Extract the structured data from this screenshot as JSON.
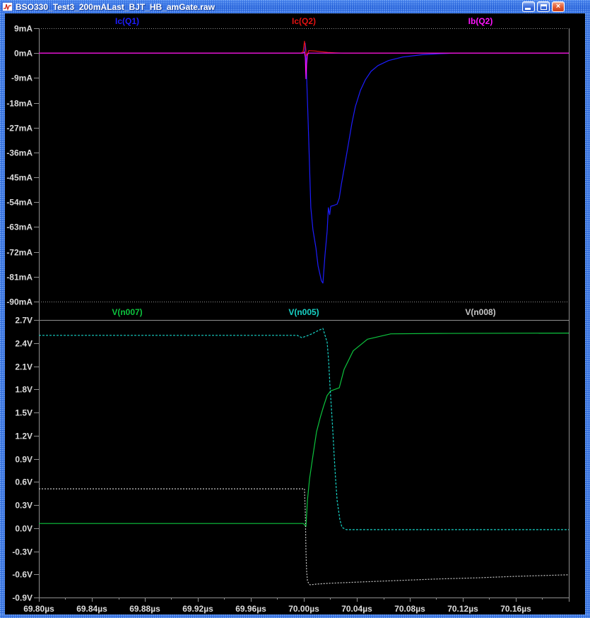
{
  "title_bar": {
    "title": "BSO330_Test3_200mALast_BJT_HB_amGate.raw",
    "close_glyph": "×",
    "icons": [
      "app-waveform-icon",
      "minimize-icon",
      "maximize-icon",
      "close-icon"
    ]
  },
  "colors": {
    "plot_background": "#000000",
    "axis_line": "#909090",
    "axis_text": "#dcdcdc",
    "titlebar_blue": "#2b66d9",
    "trace_blue": "#1d1dff",
    "trace_red": "#e41212",
    "trace_magenta": "#ff14ff",
    "trace_green": "#0dc43e",
    "trace_cyan": "#17d2c6",
    "trace_gray": "#c8c8c8"
  },
  "x_axis": {
    "unit": "µs",
    "xlim": [
      69.8,
      70.2
    ],
    "major_ticks": [
      {
        "t": 69.8,
        "label": "69.80µs"
      },
      {
        "t": 69.84,
        "label": "69.84µs"
      },
      {
        "t": 69.88,
        "label": "69.88µs"
      },
      {
        "t": 69.92,
        "label": "69.92µs"
      },
      {
        "t": 69.96,
        "label": "69.96µs"
      },
      {
        "t": 70.0,
        "label": "70.00µs"
      },
      {
        "t": 70.04,
        "label": "70.04µs"
      },
      {
        "t": 70.08,
        "label": "70.08µs"
      },
      {
        "t": 70.12,
        "label": "70.12µs"
      },
      {
        "t": 70.16,
        "label": "70.16µs"
      },
      {
        "t": 70.2,
        "label": ""
      }
    ],
    "minor_step": 0.02
  },
  "chart_data": [
    {
      "type": "line",
      "pane": "currents",
      "ylabel": "mA",
      "ylim": [
        -90,
        9
      ],
      "grid": false,
      "legend_position": "top-centered",
      "yticks": [
        {
          "v": 9,
          "label": "9mA"
        },
        {
          "v": 0,
          "label": "0mA"
        },
        {
          "v": -9,
          "label": "-9mA"
        },
        {
          "v": -18,
          "label": "-18mA"
        },
        {
          "v": -27,
          "label": "-27mA"
        },
        {
          "v": -36,
          "label": "-36mA"
        },
        {
          "v": -45,
          "label": "-45mA"
        },
        {
          "v": -54,
          "label": "-54mA"
        },
        {
          "v": -63,
          "label": "-63mA"
        },
        {
          "v": -72,
          "label": "-72mA"
        },
        {
          "v": -81,
          "label": "-81mA"
        },
        {
          "v": -90,
          "label": "-90mA"
        }
      ],
      "series": [
        {
          "name": "Ic(Q1)",
          "color": "#1d1dff",
          "dash": "",
          "points": [
            [
              69.8,
              0
            ],
            [
              69.999,
              0
            ],
            [
              70.0005,
              0.2
            ],
            [
              70.001,
              3.6
            ],
            [
              70.0016,
              1.0
            ],
            [
              70.0021,
              -8
            ],
            [
              70.0032,
              -24
            ],
            [
              70.0043,
              -41
            ],
            [
              70.0053,
              -56
            ],
            [
              70.0069,
              -64
            ],
            [
              70.0091,
              -70.5
            ],
            [
              70.0107,
              -77
            ],
            [
              70.0133,
              -82.5
            ],
            [
              70.0144,
              -83.3
            ],
            [
              70.016,
              -73
            ],
            [
              70.0176,
              -64.5
            ],
            [
              70.0185,
              -56
            ],
            [
              70.0195,
              -58.5
            ],
            [
              70.0203,
              -55.5
            ],
            [
              70.0224,
              -55.2
            ],
            [
              70.0251,
              -54.7
            ],
            [
              70.0267,
              -52.6
            ],
            [
              70.0283,
              -47.5
            ],
            [
              70.0309,
              -40.6
            ],
            [
              70.0336,
              -33
            ],
            [
              70.0363,
              -25.3
            ],
            [
              70.0389,
              -19.4
            ],
            [
              70.0427,
              -13.5
            ],
            [
              70.0464,
              -9.7
            ],
            [
              70.0507,
              -6.6
            ],
            [
              70.056,
              -4.5
            ],
            [
              70.064,
              -2.7
            ],
            [
              70.0747,
              -1.4
            ],
            [
              70.089,
              -0.6
            ],
            [
              70.103,
              -0.2
            ],
            [
              70.115,
              0
            ],
            [
              70.2,
              0
            ]
          ]
        },
        {
          "name": "Ic(Q2)",
          "color": "#e41212",
          "dash": "",
          "points": [
            [
              69.8,
              0
            ],
            [
              69.998,
              0
            ],
            [
              69.9995,
              0.6
            ],
            [
              70.0005,
              4.3
            ],
            [
              70.0013,
              1.5
            ],
            [
              70.0019,
              -0.9
            ],
            [
              70.0027,
              -0.3
            ],
            [
              70.0037,
              0.9
            ],
            [
              70.008,
              0.8
            ],
            [
              70.013,
              0.5
            ],
            [
              70.018,
              0.25
            ],
            [
              70.024,
              0.1
            ],
            [
              70.03,
              0
            ],
            [
              70.2,
              0
            ]
          ]
        },
        {
          "name": "Ib(Q2)",
          "color": "#ff14ff",
          "dash": "",
          "points": [
            [
              69.8,
              0
            ],
            [
              69.9995,
              0
            ],
            [
              70.0005,
              0.4
            ],
            [
              70.0011,
              -1.5
            ],
            [
              70.0016,
              -9.3
            ],
            [
              70.0021,
              -4
            ],
            [
              70.0027,
              -0.5
            ],
            [
              70.0035,
              0
            ],
            [
              70.2,
              0
            ]
          ]
        }
      ]
    },
    {
      "type": "line",
      "pane": "voltages",
      "ylabel": "V",
      "ylim": [
        -0.9,
        2.7
      ],
      "grid": false,
      "legend_position": "top-centered",
      "yticks": [
        {
          "v": 2.7,
          "label": "2.7V"
        },
        {
          "v": 2.4,
          "label": "2.4V"
        },
        {
          "v": 2.1,
          "label": "2.1V"
        },
        {
          "v": 1.8,
          "label": "1.8V"
        },
        {
          "v": 1.5,
          "label": "1.5V"
        },
        {
          "v": 1.2,
          "label": "1.2V"
        },
        {
          "v": 0.9,
          "label": "0.9V"
        },
        {
          "v": 0.6,
          "label": "0.6V"
        },
        {
          "v": 0.3,
          "label": "0.3V"
        },
        {
          "v": 0.0,
          "label": "0.0V"
        },
        {
          "v": -0.3,
          "label": "-0.3V"
        },
        {
          "v": -0.6,
          "label": "-0.6V"
        },
        {
          "v": -0.9,
          "label": "-0.9V"
        }
      ],
      "series": [
        {
          "name": "V(n007)",
          "color": "#0dc43e",
          "dash": "",
          "points": [
            [
              69.8,
              0.06
            ],
            [
              69.9995,
              0.06
            ],
            [
              70.0008,
              0.04
            ],
            [
              70.0016,
              0.02
            ],
            [
              70.0027,
              0.36
            ],
            [
              70.0043,
              0.64
            ],
            [
              70.0069,
              0.94
            ],
            [
              70.0096,
              1.25
            ],
            [
              70.0123,
              1.43
            ],
            [
              70.0149,
              1.58
            ],
            [
              70.0176,
              1.72
            ],
            [
              70.0203,
              1.78
            ],
            [
              70.0267,
              1.82
            ],
            [
              70.0304,
              2.06
            ],
            [
              70.0373,
              2.3
            ],
            [
              70.048,
              2.45
            ],
            [
              70.0656,
              2.52
            ],
            [
              70.1,
              2.525
            ],
            [
              70.2,
              2.53
            ]
          ]
        },
        {
          "name": "V(n005)",
          "color": "#17d2c6",
          "dash": "3 2",
          "points": [
            [
              69.8,
              2.5
            ],
            [
              69.995,
              2.5
            ],
            [
              69.9985,
              2.47
            ],
            [
              70.002,
              2.49
            ],
            [
              70.006,
              2.52
            ],
            [
              70.01,
              2.555
            ],
            [
              70.0144,
              2.59
            ],
            [
              70.016,
              2.5
            ],
            [
              70.0176,
              2.41
            ],
            [
              70.0187,
              2.17
            ],
            [
              70.0197,
              1.86
            ],
            [
              70.0208,
              1.56
            ],
            [
              70.0219,
              1.25
            ],
            [
              70.0229,
              0.94
            ],
            [
              70.024,
              0.63
            ],
            [
              70.0251,
              0.36
            ],
            [
              70.0272,
              0.11
            ],
            [
              70.0288,
              0.01
            ],
            [
              70.032,
              -0.02
            ],
            [
              70.2,
              -0.02
            ]
          ]
        },
        {
          "name": "V(n008)",
          "color": "#c8c8c8",
          "dash": "2 2",
          "points": [
            [
              69.8,
              0.51
            ],
            [
              70.0005,
              0.51
            ],
            [
              70.0011,
              0.2
            ],
            [
              70.0016,
              -0.3
            ],
            [
              70.0021,
              -0.55
            ],
            [
              70.0027,
              -0.68
            ],
            [
              70.0037,
              -0.72
            ],
            [
              70.0048,
              -0.735
            ],
            [
              70.01,
              -0.725
            ],
            [
              70.02,
              -0.715
            ],
            [
              70.04,
              -0.7
            ],
            [
              70.07,
              -0.68
            ],
            [
              70.1,
              -0.66
            ],
            [
              70.13,
              -0.645
            ],
            [
              70.16,
              -0.625
            ],
            [
              70.18,
              -0.615
            ],
            [
              70.2,
              -0.605
            ]
          ]
        }
      ]
    }
  ]
}
